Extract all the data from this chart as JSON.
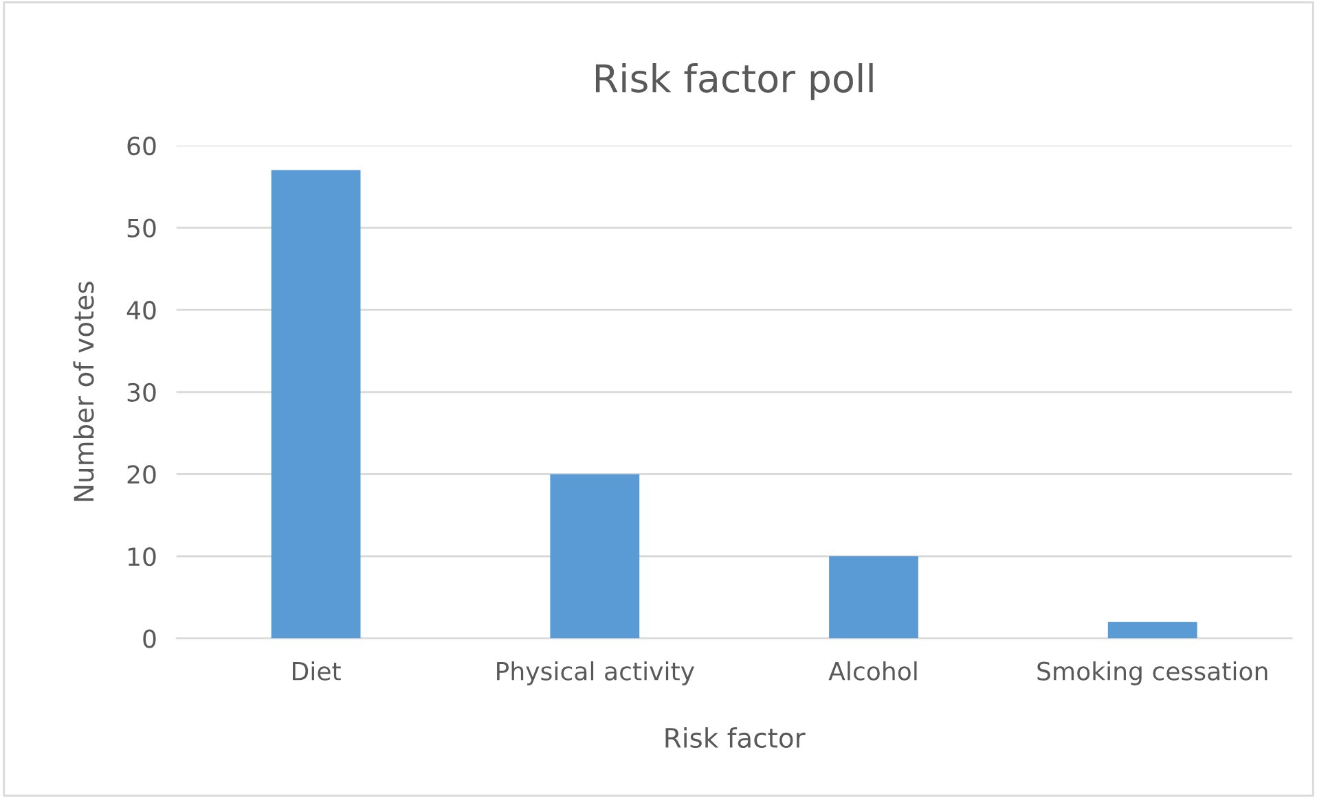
{
  "chart_data": {
    "type": "bar",
    "title": "Risk factor poll",
    "xlabel": "Risk factor",
    "ylabel": "Number of votes",
    "categories": [
      "Diet",
      "Physical activity",
      "Alcohol",
      "Smoking cessation"
    ],
    "values": [
      57,
      20,
      10,
      2
    ],
    "color": "#5b9bd5",
    "ylim": [
      0,
      60
    ],
    "yticks": [
      0,
      10,
      20,
      30,
      40,
      50,
      60
    ],
    "grid": "y",
    "legend": false
  }
}
